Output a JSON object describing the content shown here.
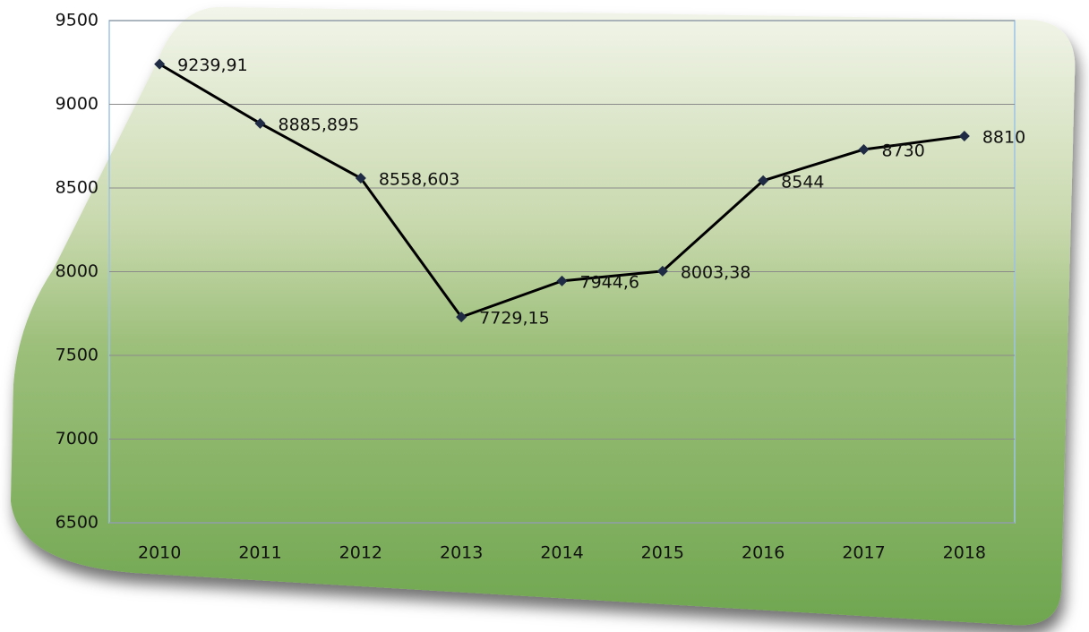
{
  "chart_data": {
    "type": "line",
    "categories": [
      "2010",
      "2011",
      "2012",
      "2013",
      "2014",
      "2015",
      "2016",
      "2017",
      "2018"
    ],
    "values": [
      9239.91,
      8885.895,
      8558.603,
      7729.15,
      7944.6,
      8003.38,
      8544,
      8730,
      8810
    ],
    "value_labels": [
      "9239,91",
      "8885,895",
      "8558,603",
      "7729,15",
      "7944,6",
      "8003,38",
      "8544",
      "8730",
      "8810"
    ],
    "color": "#000000",
    "ylim": [
      6500,
      9500
    ],
    "yticks": [
      6500,
      7000,
      7500,
      8000,
      8500,
      9000,
      9500
    ],
    "grid": true
  }
}
